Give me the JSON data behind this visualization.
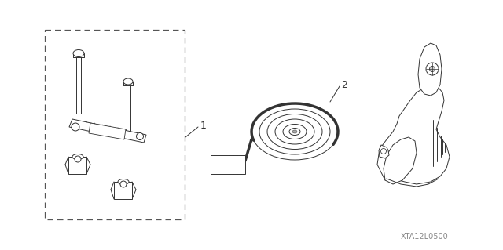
{
  "background_color": "#ffffff",
  "fig_width": 6.4,
  "fig_height": 3.19,
  "dpi": 100,
  "watermark": "XTA12L0500",
  "watermark_fontsize": 7,
  "watermark_color": "#888888",
  "label1_text": "1",
  "label2_text": "2",
  "line_color": "#333333",
  "line_width": 0.7,
  "dashed_color": "#555555"
}
